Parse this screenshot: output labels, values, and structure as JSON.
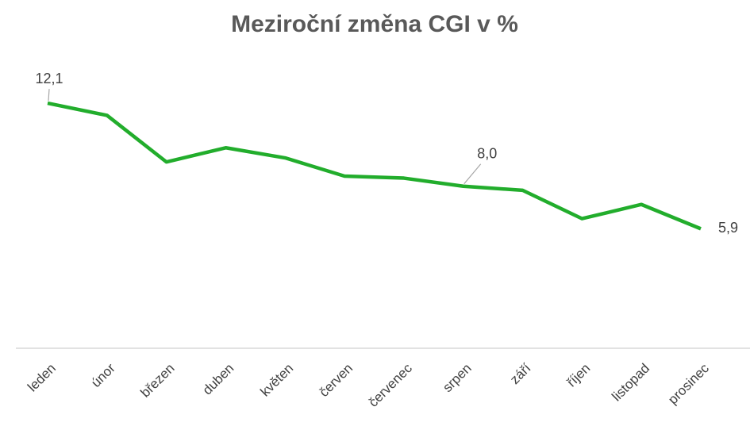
{
  "chart_data": {
    "type": "line",
    "title": "Meziroční změna CGI v %",
    "categories": [
      "leden",
      "únor",
      "březen",
      "duben",
      "květen",
      "červen",
      "červenec",
      "srpen",
      "září",
      "říjen",
      "listopad",
      "prosinec"
    ],
    "series": [
      {
        "name": "CGI",
        "color": "#22ad2c",
        "values": [
          12.1,
          11.5,
          9.2,
          9.9,
          9.4,
          8.5,
          8.4,
          8.0,
          7.8,
          6.4,
          7.1,
          5.9
        ],
        "value_labels": [
          "12,1",
          null,
          null,
          null,
          null,
          null,
          null,
          "8,0",
          null,
          null,
          null,
          "5,9"
        ]
      }
    ],
    "ylim": [
      0,
      14
    ],
    "grid": false
  }
}
